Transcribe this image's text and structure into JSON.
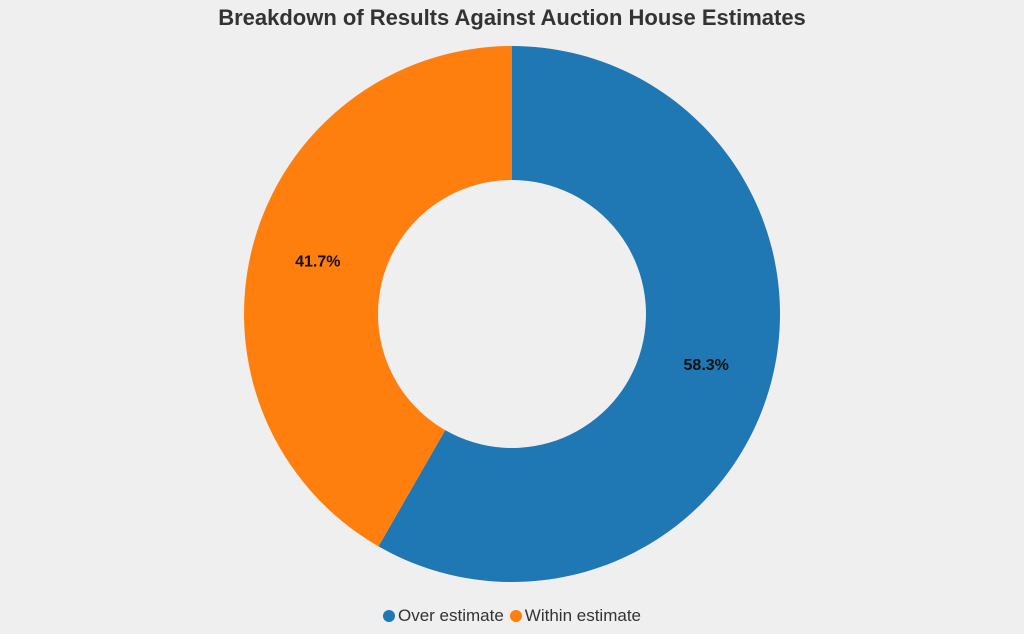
{
  "chart_data": {
    "type": "pie",
    "title": "Breakdown of Results Against Auction House Estimates",
    "donut": true,
    "slices": [
      {
        "label": "Over estimate",
        "value": 58.3,
        "display": "58.3%",
        "color": "#1f77b4"
      },
      {
        "label": "Within estimate",
        "value": 41.7,
        "display": "41.7%",
        "color": "#ff7f0e"
      }
    ],
    "legend_position": "bottom"
  }
}
